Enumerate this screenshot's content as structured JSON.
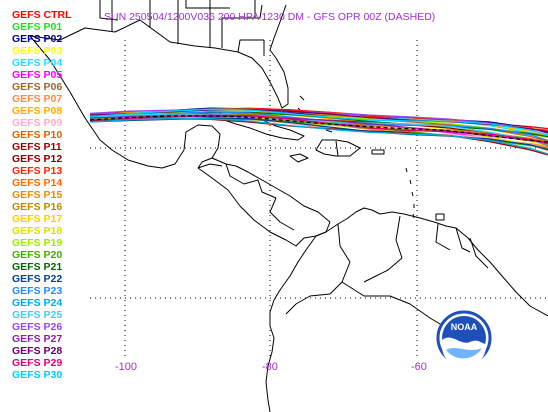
{
  "title": "SUN 250504/1200V036  200 HPA 1230 DM - GFS OPR 00Z (DASHED)",
  "legend": [
    {
      "label": "GEFS CTRL",
      "color": "#ff0000"
    },
    {
      "label": "GEFS P01",
      "color": "#22dd22"
    },
    {
      "label": "GEFS P02",
      "color": "#000088"
    },
    {
      "label": "GEFS P03",
      "color": "#ffff00"
    },
    {
      "label": "GEFS P04",
      "color": "#22ddff"
    },
    {
      "label": "GEFS P05",
      "color": "#ff00ff"
    },
    {
      "label": "GEFS P06",
      "color": "#996633"
    },
    {
      "label": "GEFS P07",
      "color": "#ff8844"
    },
    {
      "label": "GEFS P08",
      "color": "#ffaa00"
    },
    {
      "label": "GEFS P09",
      "color": "#ffaacc"
    },
    {
      "label": "GEFS P10",
      "color": "#cc6600"
    },
    {
      "label": "GEFS P11",
      "color": "#990000"
    },
    {
      "label": "GEFS P12",
      "color": "#880000"
    },
    {
      "label": "GEFS P13",
      "color": "#ff2200"
    },
    {
      "label": "GEFS P14",
      "color": "#ff6600"
    },
    {
      "label": "GEFS P15",
      "color": "#ee8800"
    },
    {
      "label": "GEFS P16",
      "color": "#bb8800"
    },
    {
      "label": "GEFS P17",
      "color": "#ffcc00"
    },
    {
      "label": "GEFS P18",
      "color": "#dddd00"
    },
    {
      "label": "GEFS P19",
      "color": "#99ee00"
    },
    {
      "label": "GEFS P20",
      "color": "#44aa00"
    },
    {
      "label": "GEFS P21",
      "color": "#006600"
    },
    {
      "label": "GEFS P22",
      "color": "#004488"
    },
    {
      "label": "GEFS P23",
      "color": "#2288ff"
    },
    {
      "label": "GEFS P24",
      "color": "#00aadd"
    },
    {
      "label": "GEFS P25",
      "color": "#44ccee"
    },
    {
      "label": "GEFS P26",
      "color": "#9944ee"
    },
    {
      "label": "GEFS P27",
      "color": "#8822aa"
    },
    {
      "label": "GEFS P28",
      "color": "#660066"
    },
    {
      "label": "GEFS P29",
      "color": "#dd0077"
    },
    {
      "label": "GEFS P30",
      "color": "#00ccff"
    }
  ],
  "longitude_labels": [
    "-100",
    "-80",
    "-60"
  ],
  "logo_text": "NOAA"
}
